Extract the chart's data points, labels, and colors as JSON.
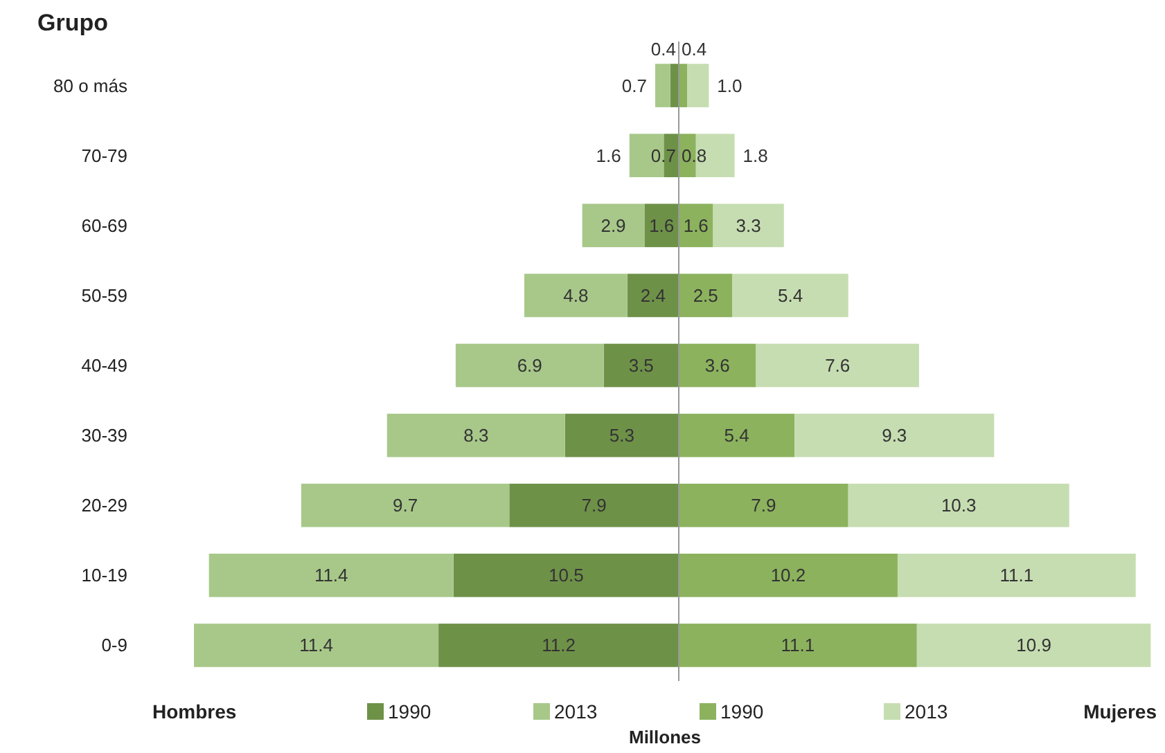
{
  "chart_data": [
    {
      "type": "bar",
      "orientation": "horizontal",
      "stacked": true,
      "ylabel": "Grupo",
      "xlabel": "Millones",
      "tick_labels": "y",
      "categories": [
        "80 o más",
        "70-79",
        "60-69",
        "50-59",
        "40-49",
        "30-39",
        "20-29",
        "10-19",
        "0-9"
      ],
      "series": [
        {
          "name": "1990",
          "color": "#6e9148",
          "values": [
            0.4,
            0.7,
            1.6,
            2.4,
            3.5,
            5.3,
            7.9,
            10.5,
            11.2
          ],
          "value_labels": [
            "0.4",
            "0.7",
            "1.6",
            "2.4",
            "3.5",
            "5.3",
            "7.9",
            "10.5",
            "11.2"
          ]
        },
        {
          "name": "2013",
          "color": "#a8c88a",
          "values": [
            0.7,
            1.6,
            2.9,
            4.8,
            6.9,
            8.3,
            9.7,
            11.4,
            11.4
          ],
          "value_labels": [
            "0.7",
            "1.6",
            "2.9",
            "4.8",
            "6.9",
            "8.3",
            "9.7",
            "11.4",
            "11.4"
          ]
        }
      ],
      "annotations": [
        "Hombres"
      ],
      "legend": "bottom"
    },
    {
      "type": "bar",
      "orientation": "horizontal",
      "stacked": true,
      "categories": [
        null,
        null,
        null,
        null,
        null,
        null,
        null,
        null,
        null
      ],
      "series": [
        {
          "name": "1990",
          "color": "#8cb25e",
          "values": [
            0.4,
            0.8,
            1.6,
            2.5,
            3.6,
            5.4,
            7.9,
            10.2,
            11.1
          ],
          "value_labels": [
            "0.4",
            "0.8",
            "1.6",
            "2.5",
            "3.6",
            "5.4",
            "7.9",
            "10.2",
            "11.1"
          ]
        },
        {
          "name": "2013",
          "color": "#c6ddb1",
          "values": [
            1.0,
            1.8,
            3.3,
            5.4,
            7.6,
            9.3,
            10.3,
            11.1,
            10.9
          ],
          "value_labels": [
            "1.0",
            "1.8",
            "3.3",
            "5.4",
            "7.6",
            "9.3",
            "10.3",
            "11.1",
            "10.9"
          ]
        }
      ],
      "annotations": [
        "Mujeres"
      ],
      "legend": "bottom"
    }
  ]
}
